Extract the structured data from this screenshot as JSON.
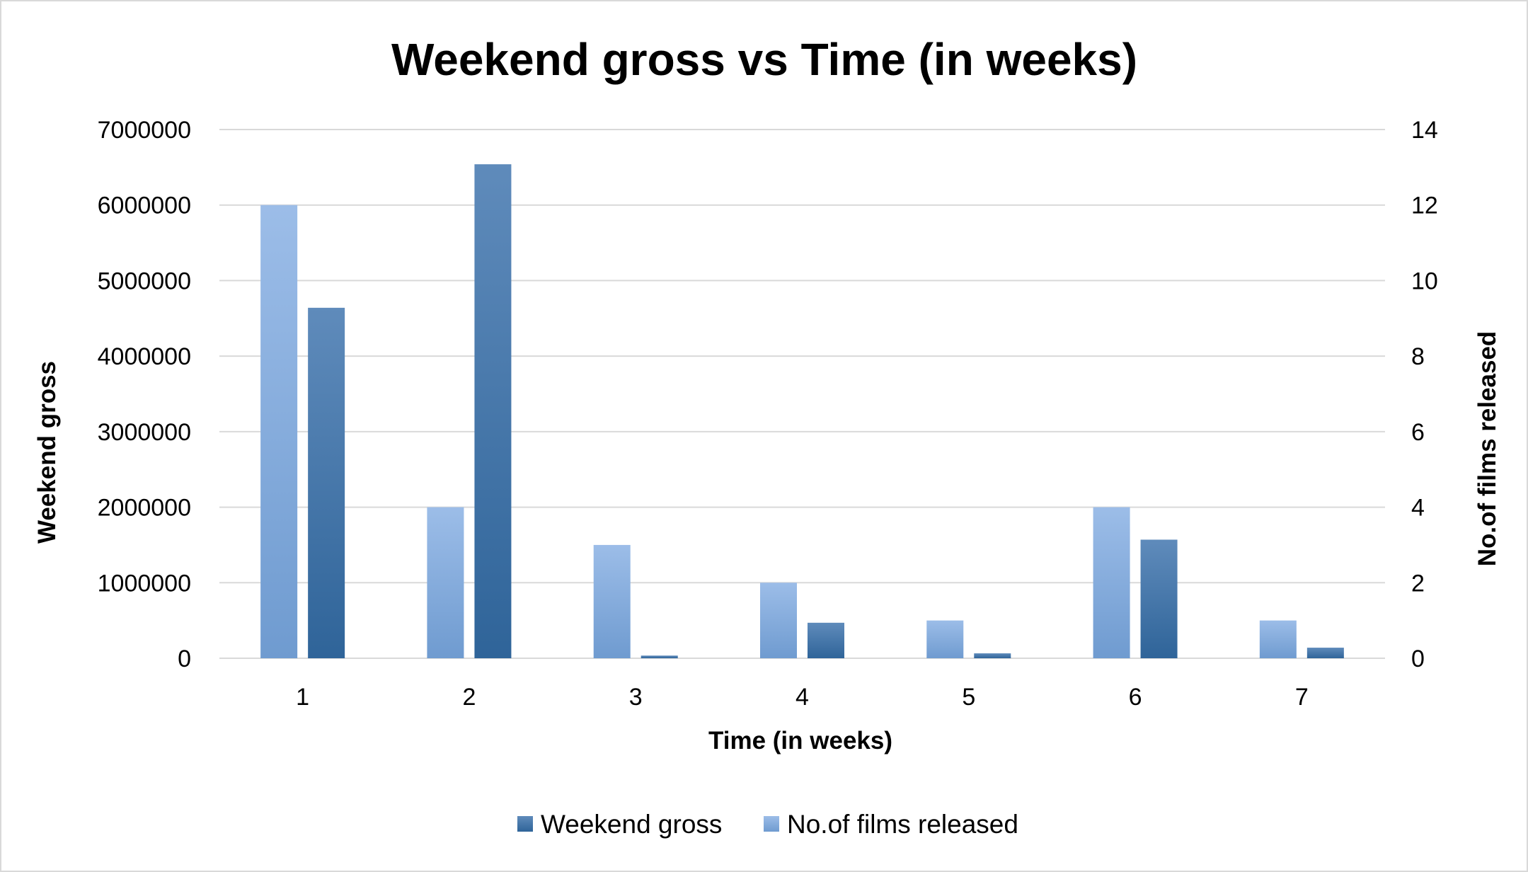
{
  "chart_data": {
    "type": "bar",
    "title": "Weekend gross vs Time (in weeks)",
    "xlabel": "Time (in weeks)",
    "ylabel": "Weekend gross",
    "y2label": "No.of films released",
    "categories": [
      "1",
      "2",
      "3",
      "4",
      "5",
      "6",
      "7"
    ],
    "ylim": [
      0,
      7000000
    ],
    "y2lim": [
      0,
      14
    ],
    "yticks": [
      "0",
      "1000000",
      "2000000",
      "3000000",
      "4000000",
      "5000000",
      "6000000",
      "7000000"
    ],
    "y2ticks": [
      "0",
      "2",
      "4",
      "6",
      "8",
      "10",
      "12",
      "14"
    ],
    "grid": true,
    "legend_position": "bottom",
    "series": [
      {
        "name": "No.of films released",
        "axis": "right",
        "color": "#8fb4e3",
        "values": [
          12,
          4,
          3,
          2,
          1,
          4,
          1
        ]
      },
      {
        "name": "Weekend gross",
        "axis": "left",
        "color": "#3b6fa5",
        "values": [
          4640000,
          6540000,
          35000,
          470000,
          65000,
          1570000,
          140000
        ]
      }
    ],
    "legend": [
      {
        "name": "Weekend gross",
        "color": "#3b6fa5"
      },
      {
        "name": "No.of films released",
        "color": "#8fb4e3"
      }
    ]
  }
}
